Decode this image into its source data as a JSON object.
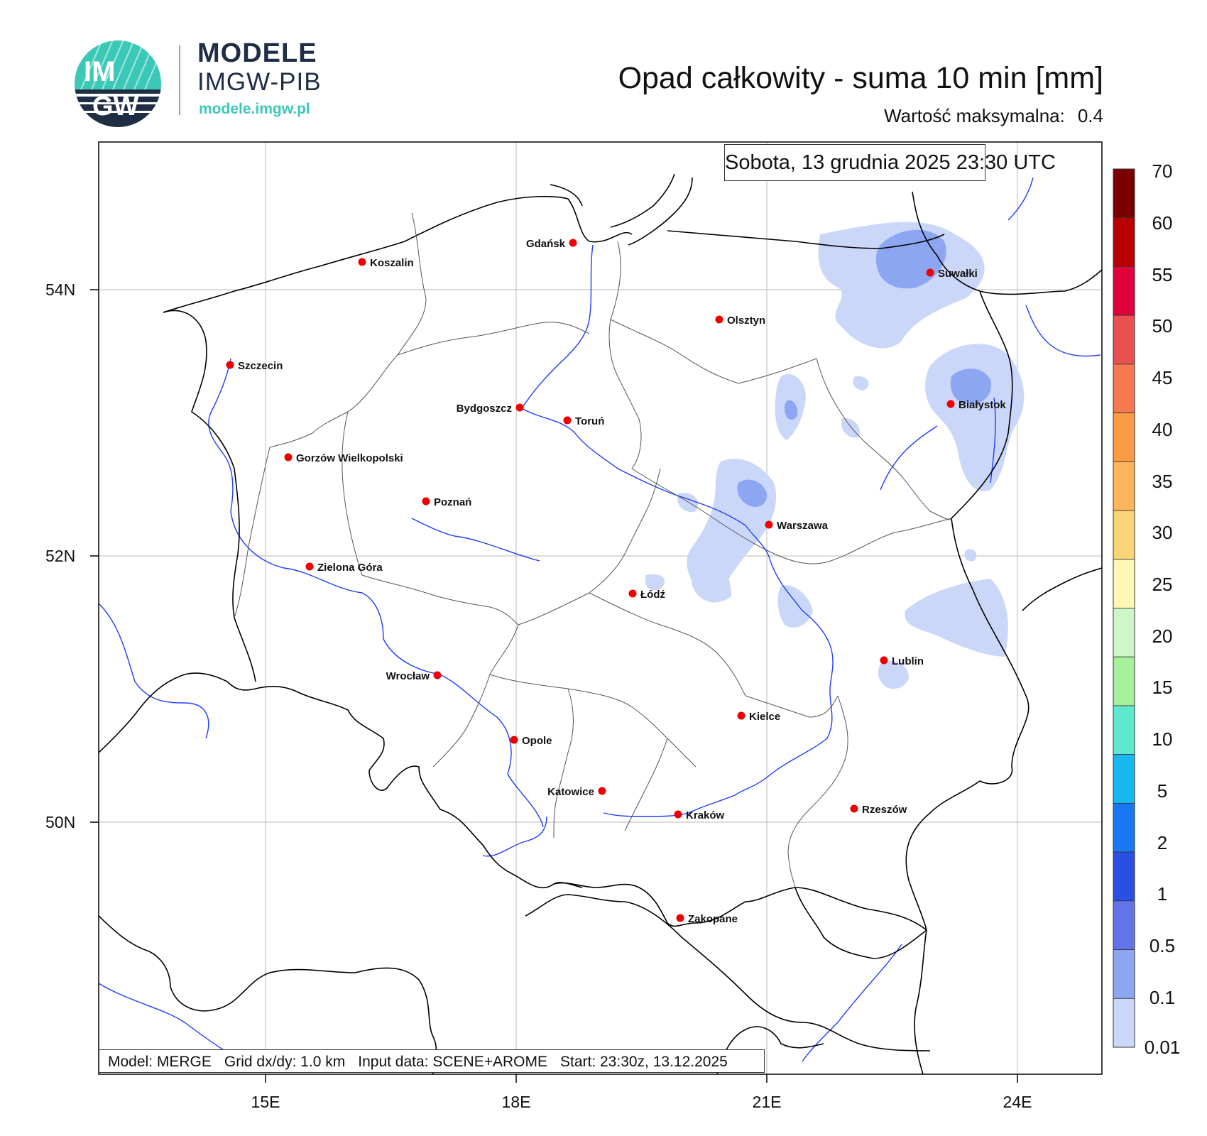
{
  "header": {
    "logo_text_top": "IM",
    "logo_text_bottom": "GW",
    "brand_title": "MODELE",
    "brand_subtitle": "IMGW-PIB",
    "brand_url": "modele.imgw.pl",
    "map_title": "Opad całkowity - suma 10 min [mm]",
    "max_value_label": "Wartość maksymalna:",
    "max_value": "0.4",
    "brand_colors": {
      "navy": "#1f2d45",
      "teal": "#3cc8b7"
    }
  },
  "map": {
    "date_label": "Sobota, 13 grudnia 2025 23:30 UTC",
    "lat_ticks": [
      "54N",
      "52N",
      "50N"
    ],
    "lon_ticks": [
      "15E",
      "18E",
      "21E",
      "24E"
    ],
    "cities": [
      {
        "name": "Gdańsk"
      },
      {
        "name": "Koszalin"
      },
      {
        "name": "Suwałki"
      },
      {
        "name": "Olsztyn"
      },
      {
        "name": "Szczecin"
      },
      {
        "name": "Białystok"
      },
      {
        "name": "Bydgoszcz"
      },
      {
        "name": "Toruń"
      },
      {
        "name": "Gorzów Wielkopolski"
      },
      {
        "name": "Poznań"
      },
      {
        "name": "Warszawa"
      },
      {
        "name": "Zielona Góra"
      },
      {
        "name": "Łódź"
      },
      {
        "name": "Lublin"
      },
      {
        "name": "Wrocław"
      },
      {
        "name": "Kielce"
      },
      {
        "name": "Opole"
      },
      {
        "name": "Katowice"
      },
      {
        "name": "Kraków"
      },
      {
        "name": "Rzeszów"
      },
      {
        "name": "Zakopane"
      }
    ],
    "colors": {
      "border": "#000000",
      "river": "#1f3cff",
      "grid": "#b8b8b8",
      "city": "#ee0000"
    }
  },
  "colorbar": {
    "labels": [
      "70",
      "60",
      "55",
      "50",
      "45",
      "40",
      "35",
      "30",
      "25",
      "20",
      "15",
      "10",
      "5",
      "2",
      "1",
      "0.5",
      "0.1",
      "0.01"
    ],
    "colors_top_to_bottom": [
      "#7a0000",
      "#b80000",
      "#e0003c",
      "#ea5050",
      "#f57a50",
      "#fb9b43",
      "#fdb55b",
      "#fad575",
      "#fef8b4",
      "#cef7c8",
      "#a7f09a",
      "#5fe8d0",
      "#17b8f0",
      "#1b78f5",
      "#2a4fe5",
      "#6275e8",
      "#8da6f2",
      "#cbd7f8"
    ]
  },
  "footer": {
    "model": "Model: MERGE",
    "grid": "Grid dx/dy: 1.0 km",
    "input": "Input data: SCENE+AROME",
    "start": "Start: 23:30z, 13.12.2025"
  }
}
